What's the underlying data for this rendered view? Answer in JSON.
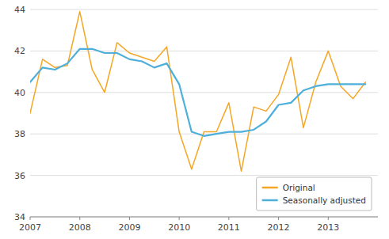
{
  "chart_data": {
    "type": "line",
    "x": [
      2007,
      2007.25,
      2007.5,
      2007.75,
      2008,
      2008.25,
      2008.5,
      2008.75,
      2009,
      2009.25,
      2009.5,
      2009.75,
      2010,
      2010.25,
      2010.5,
      2010.75,
      2011,
      2011.25,
      2011.5,
      2011.75,
      2012,
      2012.25,
      2012.5,
      2012.75,
      2013,
      2013.25,
      2013.5,
      2013.75
    ],
    "series": [
      {
        "name": "Original",
        "color": "#F5A623",
        "values": [
          39.0,
          41.6,
          41.2,
          41.3,
          43.9,
          41.1,
          40.0,
          42.4,
          41.9,
          41.7,
          41.5,
          42.2,
          38.1,
          36.3,
          38.1,
          38.1,
          39.5,
          36.2,
          39.3,
          39.1,
          39.9,
          41.7,
          38.3,
          40.5,
          42.0,
          40.3,
          39.7,
          40.5
        ]
      },
      {
        "name": "Seasonally adjusted",
        "color": "#4DAFDA",
        "values": [
          40.5,
          41.2,
          41.1,
          41.4,
          42.1,
          42.1,
          41.9,
          41.9,
          41.6,
          41.5,
          41.2,
          41.4,
          40.4,
          38.1,
          37.9,
          38.0,
          38.1,
          38.1,
          38.2,
          38.6,
          39.4,
          39.5,
          40.1,
          40.3,
          40.4,
          40.4,
          40.4,
          40.4
        ]
      }
    ],
    "xlim": [
      2007,
      2014
    ],
    "xticks": [
      2007,
      2008,
      2009,
      2010,
      2011,
      2012,
      2013
    ],
    "ylim": [
      34,
      44
    ],
    "yticks": [
      34,
      36,
      38,
      40,
      42,
      44
    ],
    "grid": "y",
    "legend": "lower right"
  }
}
